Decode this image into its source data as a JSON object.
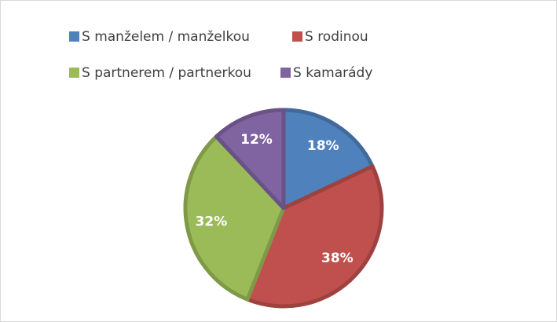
{
  "chart_data": {
    "type": "pie",
    "categories": [
      "S manželem / manželkou",
      "S rodinou",
      "S partnerem / partnerkou",
      "S kamarády"
    ],
    "values": [
      18,
      38,
      32,
      12
    ],
    "value_labels": [
      "18%",
      "38%",
      "32%",
      "12%"
    ],
    "colors": [
      "#4f81bd",
      "#c0504d",
      "#9bbb59",
      "#8064a2"
    ],
    "legend": "top"
  }
}
